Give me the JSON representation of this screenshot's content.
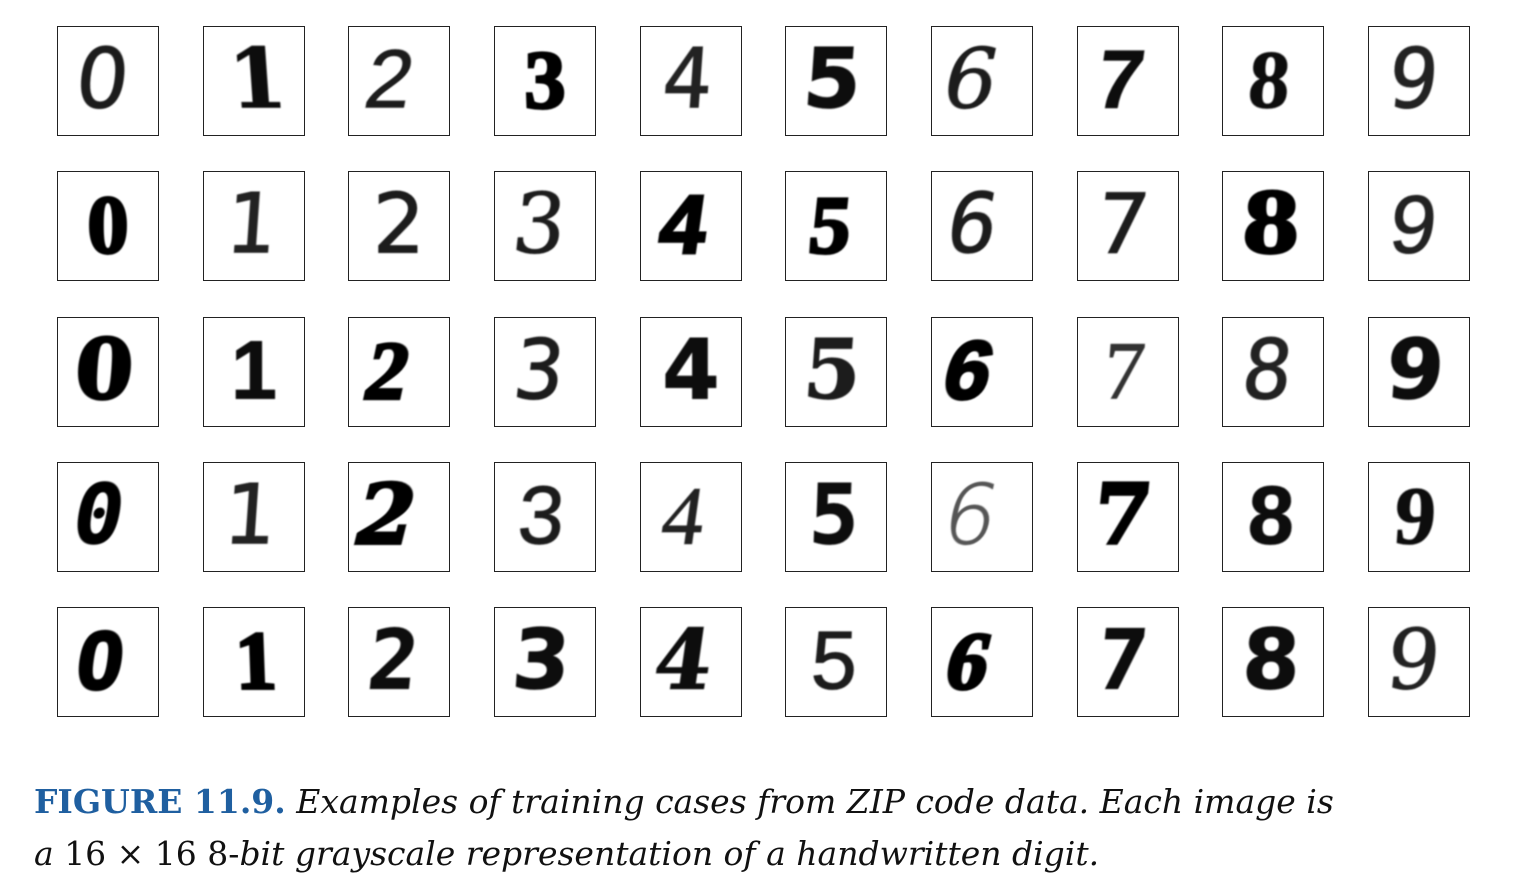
{
  "figure": {
    "label": "FIGURE 11.9.",
    "caption_line1": "Examples of training cases from ZIP code data. Each image is",
    "caption_line2_a": "a",
    "caption_line2_b": "16 × 16 8-",
    "caption_line2_c": "bit grayscale representation of a handwritten digit."
  },
  "grid": {
    "rows": 5,
    "columns": 10,
    "digits": [
      [
        "0",
        "1",
        "2",
        "3",
        "4",
        "5",
        "6",
        "7",
        "8",
        "9"
      ],
      [
        "0",
        "1",
        "2",
        "3",
        "4",
        "5",
        "6",
        "7",
        "8",
        "9"
      ],
      [
        "0",
        "1",
        "2",
        "3",
        "4",
        "5",
        "6",
        "7",
        "8",
        "9"
      ],
      [
        "0",
        "1",
        "2",
        "3",
        "4",
        "5",
        "6",
        "7",
        "8",
        "9"
      ],
      [
        "0",
        "1",
        "2",
        "3",
        "4",
        "5",
        "6",
        "7",
        "8",
        "9"
      ]
    ]
  }
}
